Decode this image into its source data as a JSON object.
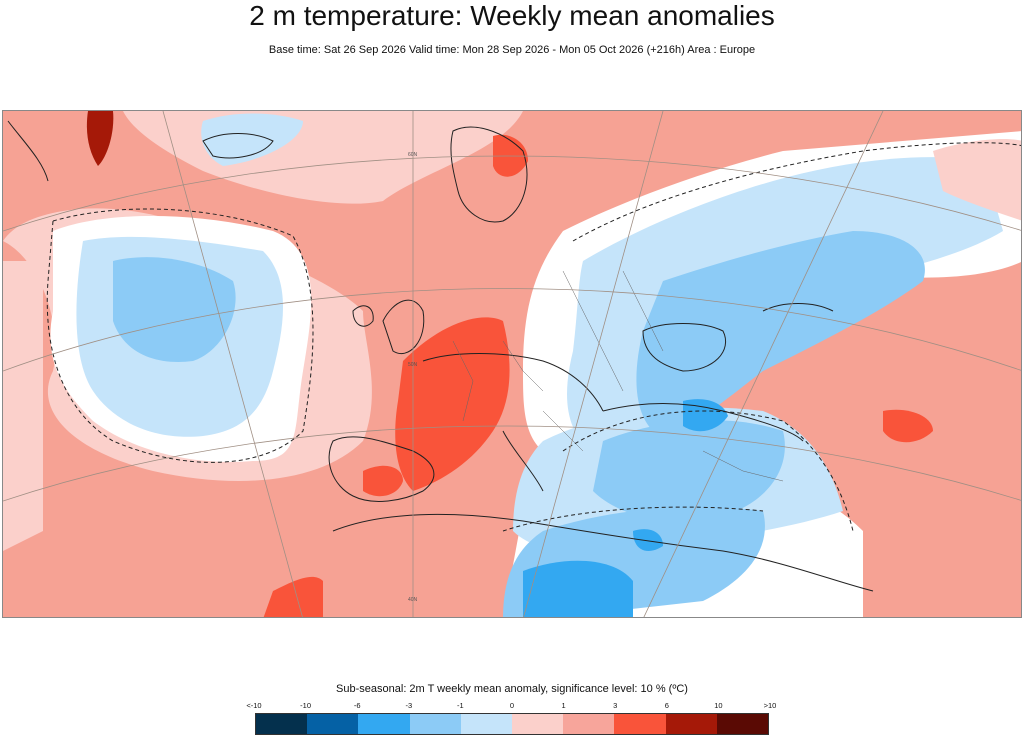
{
  "header": {
    "title": "2 m temperature: Weekly mean anomalies",
    "subtitle": "Base time: Sat 26 Sep 2026 Valid time: Mon 28 Sep 2026 - Mon 05 Oct 2026 (+216h) Area : Europe"
  },
  "map": {
    "grid_labels": [
      "60N",
      "50N",
      "40N"
    ]
  },
  "legend": {
    "title": "Sub-seasonal: 2m T weekly mean anomaly, significance level: 10 % (ºC)",
    "ticks": [
      "<-10",
      "-10",
      "-6",
      "-3",
      "-1",
      "0",
      "1",
      "3",
      "6",
      "10",
      ">10"
    ],
    "bins": [
      {
        "color": "#04304d"
      },
      {
        "color": "#0561a5"
      },
      {
        "color": "#33a8f1"
      },
      {
        "color": "#8ccbf6"
      },
      {
        "color": "#c5e4fa"
      },
      {
        "color": "#fbd0cb"
      },
      {
        "color": "#f7a59b"
      },
      {
        "color": "#f9543a"
      },
      {
        "color": "#a51908"
      },
      {
        "color": "#5a0a04"
      }
    ]
  }
}
